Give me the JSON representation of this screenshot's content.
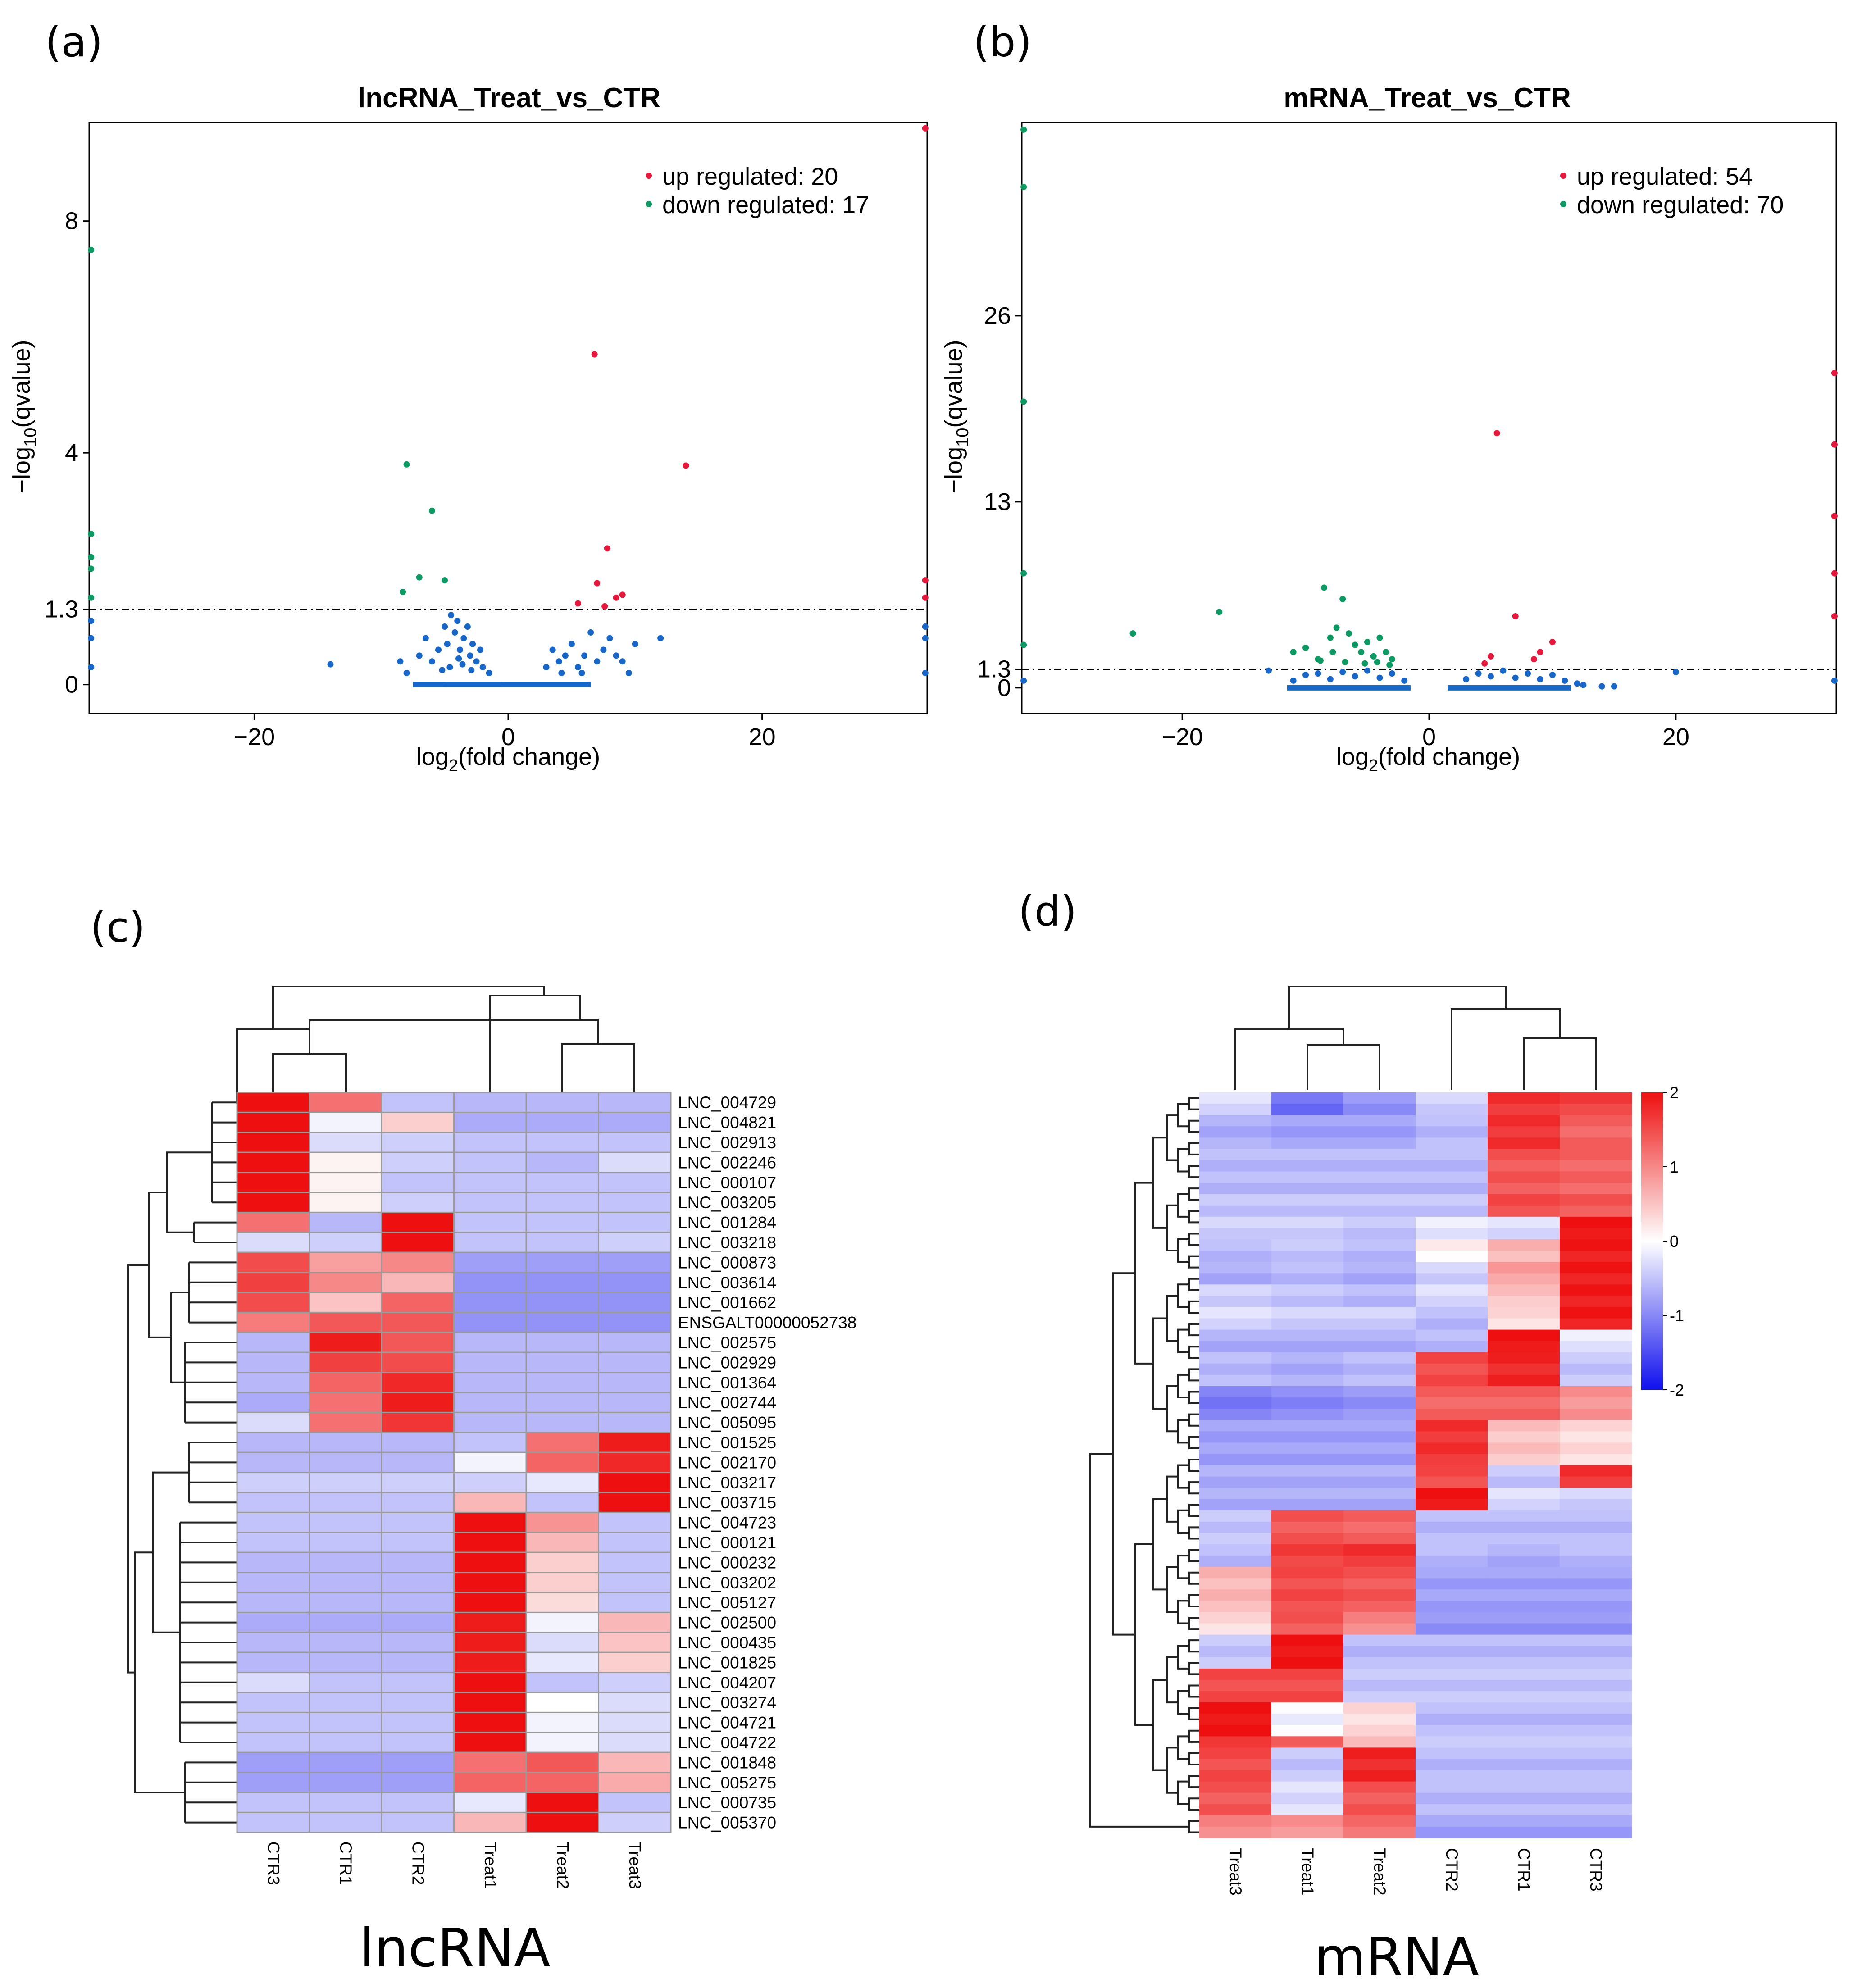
{
  "panel_labels": [
    "(a)",
    "(b)",
    "(c)",
    "(d)"
  ],
  "colors": {
    "up": "#e8173c",
    "down": "#0a9a62",
    "nonsig": "#1667c9",
    "heat_low": "#1010ee",
    "heat_mid": "#ffffff",
    "heat_high": "#ee1010"
  },
  "chart_data": [
    {
      "type": "scatter",
      "id": "a",
      "title": "lncRNA_Treat_vs_CTR",
      "xlabel_main": "log",
      "xlabel_sub": "2",
      "xlabel_tail": "(fold change)",
      "ylabel_main": "−log",
      "ylabel_sub": "10",
      "ylabel_tail": "(qvalue)",
      "xlim": [
        -33,
        33
      ],
      "ylim": [
        -0.5,
        9.7
      ],
      "xticks": [
        -20,
        0,
        20
      ],
      "yticks": [
        0,
        1.3,
        4,
        8
      ],
      "ytick_labels": [
        "0",
        "1.3",
        "4",
        "8"
      ],
      "threshold": 1.3,
      "legend": {
        "up": "up regulated: 20",
        "down": "down regulated: 17"
      },
      "up_points": [
        [
          6.8,
          5.7
        ],
        [
          14,
          3.78
        ],
        [
          7.8,
          2.35
        ],
        [
          7,
          1.75
        ],
        [
          8.5,
          1.5
        ],
        [
          9,
          1.55
        ],
        [
          7.6,
          1.35
        ],
        [
          5.5,
          1.4
        ],
        [
          33,
          9.6
        ],
        [
          33,
          1.5
        ],
        [
          33,
          1.8
        ]
      ],
      "down_points": [
        [
          -8,
          3.8
        ],
        [
          -6,
          3.0
        ],
        [
          -7,
          1.85
        ],
        [
          -5,
          1.8
        ],
        [
          -8.3,
          1.6
        ],
        [
          -33,
          7.5
        ],
        [
          -33,
          2.6
        ],
        [
          -33,
          2.2
        ],
        [
          -33,
          2
        ],
        [
          -33,
          1.5
        ]
      ],
      "nonsig_points": [
        [
          -14,
          0.35
        ],
        [
          -8.5,
          0.4
        ],
        [
          -8,
          0.2
        ],
        [
          -7,
          0.5
        ],
        [
          -6.5,
          0.8
        ],
        [
          -6,
          0.4
        ],
        [
          -5.5,
          0.6
        ],
        [
          -5,
          1.0
        ],
        [
          -4.8,
          0.7
        ],
        [
          -4.5,
          1.2
        ],
        [
          -4.2,
          0.9
        ],
        [
          -4,
          1.1
        ],
        [
          -3.8,
          0.6
        ],
        [
          -3.5,
          0.8
        ],
        [
          -3.2,
          1.0
        ],
        [
          -3,
          0.5
        ],
        [
          -2.8,
          0.7
        ],
        [
          -2.5,
          0.4
        ],
        [
          -2.2,
          0.6
        ],
        [
          -2,
          0.3
        ],
        [
          -1.5,
          0.2
        ],
        [
          -4.6,
          0.3
        ],
        [
          -3.6,
          0.35
        ],
        [
          -5.2,
          0.25
        ],
        [
          -2.9,
          0.25
        ],
        [
          -3.9,
          0.45
        ],
        [
          3,
          0.3
        ],
        [
          3.5,
          0.6
        ],
        [
          4,
          0.4
        ],
        [
          4.5,
          0.5
        ],
        [
          5,
          0.7
        ],
        [
          5.5,
          0.3
        ],
        [
          6,
          0.5
        ],
        [
          6.5,
          0.9
        ],
        [
          7,
          0.4
        ],
        [
          7.5,
          0.6
        ],
        [
          8,
          0.8
        ],
        [
          8.5,
          0.5
        ],
        [
          9,
          0.4
        ],
        [
          9.5,
          0.2
        ],
        [
          10,
          0.7
        ],
        [
          12,
          0.8
        ],
        [
          4.2,
          0.2
        ],
        [
          5.8,
          0.2
        ],
        [
          33,
          0.2
        ],
        [
          33,
          0.8
        ],
        [
          33,
          1.0
        ],
        [
          -33,
          0.3
        ],
        [
          -33,
          0.8
        ],
        [
          -33,
          1.1
        ]
      ],
      "baseline_segments": [
        [
          -7.5,
          -0.5
        ],
        [
          -5,
          6.5
        ]
      ]
    },
    {
      "type": "scatter",
      "id": "b",
      "title": "mRNA_Treat_vs_CTR",
      "xlabel_main": "log",
      "xlabel_sub": "2",
      "xlabel_tail": "(fold change)",
      "ylabel_main": "−log",
      "ylabel_sub": "10",
      "ylabel_tail": "(qvalue)",
      "xlim": [
        -33,
        33
      ],
      "ylim": [
        -1.8,
        39.5
      ],
      "xticks": [
        -20,
        0,
        20
      ],
      "yticks": [
        0,
        1.3,
        13,
        26
      ],
      "ytick_labels": [
        "0",
        "1.3",
        "13",
        "26"
      ],
      "threshold": 1.3,
      "legend": {
        "up": "up regulated: 54",
        "down": "down regulated: 70"
      },
      "up_points": [
        [
          5.5,
          17.8
        ],
        [
          7,
          5
        ],
        [
          10,
          3.2
        ],
        [
          9,
          2.5
        ],
        [
          8.5,
          2
        ],
        [
          5,
          2.2
        ],
        [
          4.5,
          1.7
        ],
        [
          33,
          22
        ],
        [
          33,
          17
        ],
        [
          33,
          12
        ],
        [
          33,
          8
        ],
        [
          33,
          5
        ]
      ],
      "down_points": [
        [
          -24,
          3.8
        ],
        [
          -17,
          5.3
        ],
        [
          -8.5,
          7
        ],
        [
          -7,
          6.2
        ],
        [
          -7.5,
          4.2
        ],
        [
          -8,
          3.5
        ],
        [
          -7.8,
          2.5
        ],
        [
          -6.5,
          3.8
        ],
        [
          -6,
          3
        ],
        [
          -5.5,
          2.5
        ],
        [
          -5,
          3.2
        ],
        [
          -4.5,
          2.2
        ],
        [
          -4,
          3.5
        ],
        [
          -3.5,
          2.5
        ],
        [
          -3,
          2
        ],
        [
          -10,
          2.8
        ],
        [
          -11,
          2.5
        ],
        [
          -9,
          2
        ],
        [
          -6.8,
          1.8
        ],
        [
          -5.2,
          1.7
        ],
        [
          -4.2,
          1.8
        ],
        [
          -3.2,
          1.6
        ],
        [
          -8.8,
          1.9
        ],
        [
          -33,
          39
        ],
        [
          -33,
          35
        ],
        [
          -33,
          20
        ],
        [
          -33,
          8
        ],
        [
          -33,
          3
        ]
      ],
      "nonsig_points": [
        [
          -13,
          1.2
        ],
        [
          -11,
          0.5
        ],
        [
          -10,
          0.9
        ],
        [
          -9,
          1.0
        ],
        [
          -8,
          0.6
        ],
        [
          -7,
          1.1
        ],
        [
          -6,
          0.8
        ],
        [
          -5,
          1.2
        ],
        [
          -4,
          0.7
        ],
        [
          -3,
          1.0
        ],
        [
          -2,
          0.5
        ],
        [
          3,
          0.6
        ],
        [
          4,
          1.0
        ],
        [
          5,
          0.8
        ],
        [
          6,
          1.2
        ],
        [
          7,
          0.7
        ],
        [
          8,
          1.0
        ],
        [
          9,
          0.6
        ],
        [
          10,
          0.9
        ],
        [
          11,
          0.5
        ],
        [
          12,
          0.3
        ],
        [
          12.5,
          0.2
        ],
        [
          14,
          0.1
        ],
        [
          15,
          0.1
        ],
        [
          20,
          1.1
        ],
        [
          33,
          0.5
        ],
        [
          -33,
          0.5
        ]
      ],
      "baseline_segments": [
        [
          -11.5,
          -1.5
        ],
        [
          1.5,
          11.5
        ]
      ]
    },
    {
      "type": "heatmap",
      "id": "c",
      "columns": [
        "CTR3",
        "CTR1",
        "CTR2",
        "Treat1",
        "Treat2",
        "Treat3"
      ],
      "rows": [
        "LNC_004729",
        "LNC_004821",
        "LNC_002913",
        "LNC_002246",
        "LNC_000107",
        "LNC_003205",
        "LNC_001284",
        "LNC_003218",
        "LNC_000873",
        "LNC_003614",
        "LNC_001662",
        "ENSGALT00000052738",
        "LNC_002575",
        "LNC_002929",
        "LNC_001364",
        "LNC_002744",
        "LNC_005095",
        "LNC_001525",
        "LNC_002170",
        "LNC_003217",
        "LNC_003715",
        "LNC_004723",
        "LNC_000121",
        "LNC_000232",
        "LNC_003202",
        "LNC_005127",
        "LNC_002500",
        "LNC_000435",
        "LNC_001825",
        "LNC_004207",
        "LNC_003274",
        "LNC_004721",
        "LNC_004722",
        "LNC_001848",
        "LNC_005275",
        "LNC_000735",
        "LNC_005370"
      ],
      "values": [
        [
          2.0,
          1.2,
          -0.5,
          -0.6,
          -0.6,
          -0.6
        ],
        [
          2.0,
          -0.1,
          0.4,
          -0.7,
          -0.7,
          -0.7
        ],
        [
          2.0,
          -0.3,
          -0.4,
          -0.5,
          -0.5,
          -0.5
        ],
        [
          2.0,
          0.1,
          -0.4,
          -0.5,
          -0.6,
          -0.3
        ],
        [
          2.0,
          0.1,
          -0.5,
          -0.5,
          -0.5,
          -0.5
        ],
        [
          2.0,
          0.1,
          -0.4,
          -0.5,
          -0.5,
          -0.5
        ],
        [
          1.2,
          -0.6,
          2.0,
          -0.5,
          -0.5,
          -0.5
        ],
        [
          -0.3,
          -0.4,
          2.0,
          -0.5,
          -0.5,
          -0.4
        ],
        [
          1.5,
          0.8,
          1.0,
          -0.8,
          -0.8,
          -0.8
        ],
        [
          1.6,
          1.0,
          0.6,
          -0.9,
          -0.9,
          -0.9
        ],
        [
          1.5,
          0.5,
          1.3,
          -0.9,
          -0.9,
          -0.9
        ],
        [
          1.1,
          1.4,
          1.4,
          -0.9,
          -0.9,
          -0.9
        ],
        [
          -0.6,
          1.9,
          1.4,
          -0.6,
          -0.6,
          -0.6
        ],
        [
          -0.6,
          1.6,
          1.5,
          -0.6,
          -0.6,
          -0.6
        ],
        [
          -0.6,
          1.3,
          1.8,
          -0.6,
          -0.6,
          -0.6
        ],
        [
          -0.7,
          1.2,
          1.9,
          -0.6,
          -0.6,
          -0.6
        ],
        [
          -0.3,
          1.2,
          1.7,
          -0.6,
          -0.6,
          -0.6
        ],
        [
          -0.6,
          -0.6,
          -0.6,
          -0.5,
          1.2,
          1.9
        ],
        [
          -0.6,
          -0.6,
          -0.6,
          -0.1,
          1.3,
          1.8
        ],
        [
          -0.4,
          -0.4,
          -0.4,
          -0.4,
          -0.2,
          2.0
        ],
        [
          -0.5,
          -0.5,
          -0.5,
          0.6,
          -0.5,
          2.0
        ],
        [
          -0.5,
          -0.5,
          -0.5,
          2.0,
          0.9,
          -0.5
        ],
        [
          -0.5,
          -0.5,
          -0.5,
          2.0,
          0.6,
          -0.5
        ],
        [
          -0.6,
          -0.6,
          -0.6,
          2.0,
          0.4,
          -0.5
        ],
        [
          -0.6,
          -0.6,
          -0.6,
          2.0,
          0.4,
          -0.5
        ],
        [
          -0.6,
          -0.6,
          -0.6,
          2.0,
          0.3,
          -0.5
        ],
        [
          -0.7,
          -0.7,
          -0.7,
          1.9,
          -0.1,
          0.6
        ],
        [
          -0.6,
          -0.6,
          -0.6,
          1.9,
          -0.3,
          0.5
        ],
        [
          -0.6,
          -0.6,
          -0.6,
          1.9,
          -0.2,
          0.4
        ],
        [
          -0.3,
          -0.5,
          -0.5,
          2.0,
          -0.5,
          -0.4
        ],
        [
          -0.5,
          -0.5,
          -0.5,
          2.0,
          0.0,
          -0.3
        ],
        [
          -0.5,
          -0.5,
          -0.5,
          2.0,
          -0.1,
          -0.3
        ],
        [
          -0.5,
          -0.5,
          -0.5,
          2.0,
          -0.1,
          -0.3
        ],
        [
          -0.8,
          -0.8,
          -0.8,
          1.2,
          1.4,
          0.6
        ],
        [
          -0.8,
          -0.8,
          -0.8,
          1.3,
          1.3,
          0.7
        ],
        [
          -0.5,
          -0.5,
          -0.5,
          -0.2,
          2.0,
          -0.5
        ],
        [
          -0.5,
          -0.5,
          -0.5,
          0.6,
          2.0,
          -0.4
        ]
      ],
      "row_tree": [
        [
          0,
          5
        ],
        [
          6,
          7
        ],
        [
          8,
          11
        ],
        [
          12,
          16
        ],
        [
          17,
          20
        ],
        [
          21,
          32
        ],
        [
          33,
          36
        ]
      ],
      "xlabel": "lncRNA"
    },
    {
      "type": "heatmap",
      "id": "d",
      "columns": [
        "Treat3",
        "Treat1",
        "Treat2",
        "CTR2",
        "CTR1",
        "CTR3"
      ],
      "blocks": [
        {
          "rows": 2,
          "values": [
            -0.3,
            -1.2,
            -0.9,
            -0.4,
            1.7,
            1.6
          ]
        },
        {
          "rows": 3,
          "values": [
            -0.7,
            -0.8,
            -0.8,
            -0.6,
            1.7,
            1.3
          ]
        },
        {
          "rows": 4,
          "values": [
            -0.6,
            -0.6,
            -0.6,
            -0.6,
            1.4,
            1.3
          ]
        },
        {
          "rows": 2,
          "values": [
            -0.5,
            -0.5,
            -0.5,
            -0.5,
            1.5,
            1.4
          ]
        },
        {
          "rows": 2,
          "values": [
            -0.4,
            -0.4,
            -0.5,
            -0.2,
            -0.3,
            2.0
          ]
        },
        {
          "rows": 2,
          "values": [
            -0.6,
            -0.5,
            -0.6,
            0.1,
            0.6,
            1.9
          ]
        },
        {
          "rows": 2,
          "values": [
            -0.7,
            -0.6,
            -0.7,
            -0.4,
            0.8,
            1.9
          ]
        },
        {
          "rows": 2,
          "values": [
            -0.4,
            -0.5,
            -0.6,
            -0.3,
            0.5,
            1.9
          ]
        },
        {
          "rows": 2,
          "values": [
            -0.3,
            -0.4,
            -0.4,
            -0.6,
            0.3,
            1.9
          ]
        },
        {
          "rows": 2,
          "values": [
            -0.7,
            -0.7,
            -0.7,
            -0.6,
            2.0,
            -0.2
          ]
        },
        {
          "rows": 3,
          "values": [
            -0.6,
            -0.7,
            -0.6,
            1.5,
            1.8,
            -0.5
          ]
        },
        {
          "rows": 3,
          "values": [
            -1.1,
            -1.0,
            -0.9,
            1.3,
            1.3,
            0.9
          ]
        },
        {
          "rows": 4,
          "values": [
            -0.8,
            -0.8,
            -0.8,
            1.7,
            0.5,
            0.3
          ]
        },
        {
          "rows": 2,
          "values": [
            -0.7,
            -0.7,
            -0.7,
            1.5,
            -0.5,
            1.7
          ]
        },
        {
          "rows": 2,
          "values": [
            -0.7,
            -0.7,
            -0.7,
            2.0,
            -0.3,
            -0.4
          ]
        },
        {
          "rows": 3,
          "values": [
            -0.5,
            1.4,
            1.3,
            -0.6,
            -0.6,
            -0.6
          ]
        },
        {
          "rows": 2,
          "values": [
            -0.6,
            1.6,
            1.7,
            -0.6,
            -0.7,
            -0.6
          ]
        },
        {
          "rows": 4,
          "values": [
            0.6,
            1.5,
            1.4,
            -0.8,
            -0.8,
            -0.8
          ]
        },
        {
          "rows": 2,
          "values": [
            0.3,
            1.4,
            1.0,
            -0.9,
            -0.9,
            -0.9
          ]
        },
        {
          "rows": 3,
          "values": [
            -0.5,
            2.0,
            -0.6,
            -0.6,
            -0.6,
            -0.6
          ]
        },
        {
          "rows": 3,
          "values": [
            1.5,
            1.5,
            -0.5,
            -0.5,
            -0.5,
            -0.5
          ]
        },
        {
          "rows": 3,
          "values": [
            2.0,
            -0.1,
            0.3,
            -0.6,
            -0.6,
            -0.6
          ]
        },
        {
          "rows": 1,
          "values": [
            1.6,
            1.3,
            0.5,
            -0.5,
            -0.5,
            -0.5
          ]
        },
        {
          "rows": 3,
          "values": [
            1.5,
            -0.5,
            1.8,
            -0.6,
            -0.6,
            -0.6
          ]
        },
        {
          "rows": 3,
          "values": [
            1.4,
            -0.3,
            1.4,
            -0.6,
            -0.6,
            -0.6
          ]
        },
        {
          "rows": 2,
          "values": [
            1.0,
            0.9,
            1.2,
            -0.8,
            -0.8,
            -0.8
          ]
        }
      ],
      "colorbar": {
        "ticks": [
          2,
          1,
          0,
          -1,
          -2
        ],
        "tick_labels": [
          "2",
          "1",
          "0",
          "-1",
          "-2"
        ],
        "range": [
          -2,
          2
        ]
      },
      "xlabel": "mRNA"
    }
  ]
}
